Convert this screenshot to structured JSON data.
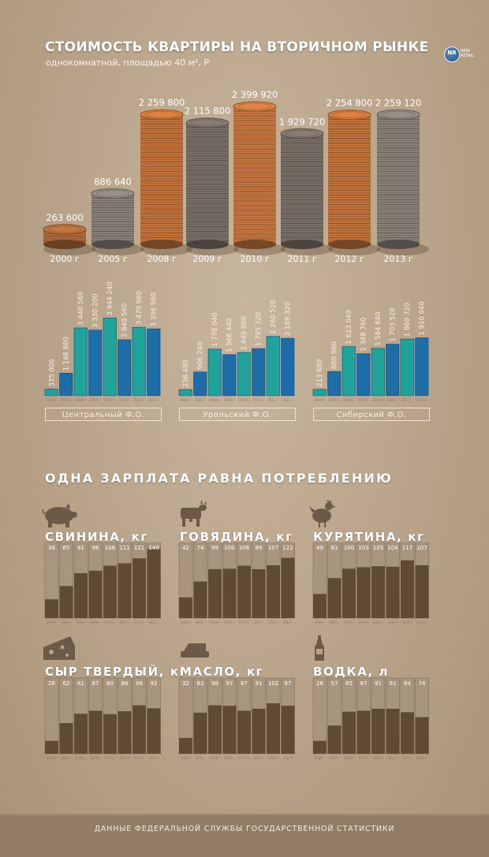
{
  "title": "СТОИМОСТЬ КВАРТИРЫ НА ВТОРИЧНОМ РЫНКЕ",
  "subtitle": "однокомнатной, площадью 40 м², Р",
  "logo": {
    "mark": "NR",
    "line1": "NEW",
    "line2": "RETAIL"
  },
  "colors": {
    "background": "#b9a58d",
    "teal": "#1fa39a",
    "blue": "#1d6da8",
    "brown": "#5e4a35",
    "panel": "#a8957f"
  },
  "chart_data": [
    {
      "type": "bar",
      "title": "СТОИМОСТЬ КВАРТИРЫ НА ВТОРИЧНОМ РЫНКЕ",
      "subtitle": "однокомнатной, площадью 40 м², Р",
      "categories": [
        "2000 г",
        "2005 г",
        "2008 г",
        "2009 г",
        "2010 г",
        "2011 г",
        "2012 г",
        "2013 г"
      ],
      "values": [
        263600,
        886640,
        2259800,
        2115800,
        2399920,
        1929720,
        2254800,
        2259120
      ],
      "value_labels": [
        "263 600",
        "886 640",
        "2 259 800",
        "2 115 800",
        "2 399 920",
        "1 929 720",
        "2 254 800",
        "2 259 120"
      ],
      "coin_colors": [
        "#b06a3a",
        "#8a8177",
        "#c4733a",
        "#7b7068",
        "#c7773f",
        "#7b7068",
        "#c4733a",
        "#8a8177"
      ]
    },
    {
      "type": "bar",
      "region": "Центральный Ф.О.",
      "x": [
        "2000 г",
        "2005 г",
        "2008 г",
        "2009 г",
        "2010 г",
        "2011 г",
        "2012 г",
        "2013 г"
      ],
      "values": [
        335000,
        1146880,
        3440560,
        3330200,
        3944240,
        2840560,
        3470960,
        3396960
      ],
      "value_labels": [
        "335 000",
        "1 146 880",
        "3 440 560",
        "3 330 200",
        "3 944 240",
        "2 840 560",
        "3 470 960",
        "3 396 960"
      ],
      "max": 4000000
    },
    {
      "type": "bar",
      "region": "Уральский Ф.О.",
      "x": [
        "2000 г",
        "2005 г",
        "2008 г",
        "2009 г",
        "2010 г",
        "2011 г",
        "2012 г",
        "2013 г"
      ],
      "values": [
        236480,
        906240,
        1776040,
        1566440,
        1649000,
        1795320,
        2260520,
        2189320
      ],
      "value_labels": [
        "236 480",
        "906 240",
        "1 776 040",
        "1 566 440",
        "1 649 000",
        "1 795 320",
        "2 260 520",
        "2 189 320"
      ],
      "max": 3000000
    },
    {
      "type": "bar",
      "region": "Сибирский Ф.О.",
      "x": [
        "2000 г",
        "2005 г",
        "2008 г",
        "2009 г",
        "2010 г",
        "2011 г",
        "2012 г",
        "2013 г"
      ],
      "values": [
        213680,
        800960,
        1623040,
        1388760,
        1564640,
        1703520,
        1869720,
        1910040
      ],
      "value_labels": [
        "213 680",
        "800 960",
        "1 623 040",
        "1 388 760",
        "1 564 640",
        "1 703 520",
        "1 869 720",
        "1 910 040"
      ],
      "max": 2600000
    },
    {
      "type": "bar",
      "product": "СВИНИНА, кг",
      "icon": "pig-icon",
      "x": [
        "2000 г",
        "2005 г",
        "2008 г",
        "2009 г",
        "2010 г",
        "2011 г",
        "2012 г",
        "2013 г"
      ],
      "values": [
        38,
        65,
        91,
        96,
        106,
        111,
        121,
        140
      ],
      "max": 150
    },
    {
      "type": "bar",
      "product": "ГОВЯДИНА, кг",
      "icon": "cow-icon",
      "x": [
        "2000 г",
        "2005 г",
        "2008 г",
        "2009 г",
        "2010 г",
        "2011 г",
        "2012 г",
        "2013 г"
      ],
      "values": [
        42,
        74,
        99,
        100,
        106,
        99,
        107,
        122
      ],
      "max": 150
    },
    {
      "type": "bar",
      "product": "КУРЯТИНА, кг",
      "icon": "chicken-icon",
      "x": [
        "2000 г",
        "2005 г",
        "2008 г",
        "2009 г",
        "2010 г",
        "2011 г",
        "2012 г",
        "2013 г"
      ],
      "values": [
        49,
        81,
        100,
        103,
        105,
        104,
        117,
        107
      ],
      "max": 150
    },
    {
      "type": "bar",
      "product": "СЫР ТВЕРДЫЙ, кг",
      "icon": "cheese-icon",
      "x": [
        "2000 г",
        "2005 г",
        "2008 г",
        "2009 г",
        "2010 г",
        "2011 г",
        "2012 г",
        "2013 г"
      ],
      "values": [
        26,
        62,
        81,
        87,
        80,
        86,
        98,
        92
      ],
      "max": 150
    },
    {
      "type": "bar",
      "product": "МАСЛО, кг",
      "icon": "butter-icon",
      "x": [
        "2000 г",
        "2005 г",
        "2008 г",
        "2009 г",
        "2010 г",
        "2011 г",
        "2012 г",
        "2013 г"
      ],
      "values": [
        32,
        83,
        98,
        97,
        87,
        91,
        102,
        97
      ],
      "max": 150
    },
    {
      "type": "bar",
      "product": "ВОДКА, л",
      "icon": "vodka-bottle-icon",
      "x": [
        "2000 г",
        "2005 г",
        "2008 г",
        "2009 г",
        "2010 г",
        "2011 г",
        "2012 г",
        "2013 г"
      ],
      "values": [
        26,
        57,
        85,
        87,
        91,
        91,
        84,
        74
      ],
      "max": 150
    }
  ],
  "section2_title": "ОДНА ЗАРПЛАТА РАВНА ПОТРЕБЛЕНИЮ",
  "footer": "ДАННЫЕ  ФЕДЕРАЛЬНОЙ СЛУЖБЫ ГОСУДАРСТВЕННОЙ СТАТИСТИКИ"
}
